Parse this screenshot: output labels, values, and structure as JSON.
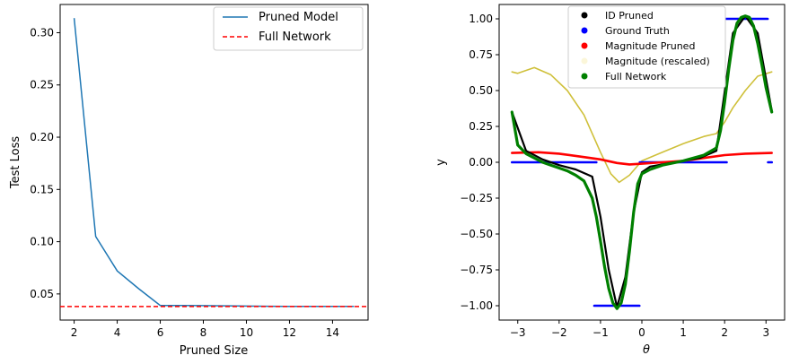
{
  "chart_data": [
    {
      "type": "line",
      "xlabel": "Pruned Size",
      "ylabel": "Test Loss",
      "xlim": [
        1.35,
        15.65
      ],
      "ylim": [
        0.025,
        0.327
      ],
      "xticks": [
        2,
        4,
        6,
        8,
        10,
        12,
        14
      ],
      "xtick_labels": [
        "2",
        "4",
        "6",
        "8",
        "10",
        "12",
        "14"
      ],
      "yticks": [
        0.05,
        0.1,
        0.15,
        0.2,
        0.25,
        0.3
      ],
      "ytick_labels": [
        "0.05",
        "0.10",
        "0.15",
        "0.20",
        "0.25",
        "0.30"
      ],
      "grid": false,
      "legend_position": "top-right",
      "series": [
        {
          "name": "Pruned Model",
          "color": "#1f77b4",
          "style": "solid",
          "x": [
            2,
            3,
            4,
            5,
            6,
            7,
            8,
            9,
            10,
            11,
            12,
            13,
            14,
            15
          ],
          "y": [
            0.314,
            0.105,
            0.072,
            0.055,
            0.039,
            0.039,
            0.0388,
            0.0386,
            0.0384,
            0.0382,
            0.038,
            0.038,
            0.038,
            0.038
          ]
        },
        {
          "name": "Full Network",
          "color": "#ff0000",
          "style": "dashed",
          "hline": 0.038
        }
      ]
    },
    {
      "type": "scatter",
      "xlabel": "θ",
      "ylabel": "y",
      "xlim": [
        -3.45,
        3.45
      ],
      "ylim": [
        -1.1,
        1.1
      ],
      "xticks": [
        -3,
        -2,
        -1,
        0,
        1,
        2,
        3
      ],
      "xtick_labels": [
        "−3",
        "−2",
        "−1",
        "0",
        "1",
        "2",
        "3"
      ],
      "yticks": [
        -1.0,
        -0.75,
        -0.5,
        -0.25,
        0.0,
        0.25,
        0.5,
        0.75,
        1.0
      ],
      "ytick_labels": [
        "−1.00",
        "−0.75",
        "−0.50",
        "−0.25",
        "0.00",
        "0.25",
        "0.50",
        "0.75",
        "1.00"
      ],
      "grid": false,
      "legend_position": "top-center",
      "series": [
        {
          "name": "ID Pruned",
          "color": "#000000",
          "x": [
            -3.14,
            -2.8,
            -2.4,
            -2.0,
            -1.6,
            -1.2,
            -1.0,
            -0.8,
            -0.6,
            -0.4,
            -0.2,
            0.0,
            0.2,
            0.6,
            1.0,
            1.4,
            1.8,
            2.2,
            2.5,
            2.8,
            3.14
          ],
          "y": [
            0.35,
            0.08,
            0.02,
            -0.02,
            -0.05,
            -0.1,
            -0.38,
            -0.75,
            -1.01,
            -0.8,
            -0.35,
            -0.07,
            -0.03,
            -0.01,
            0.01,
            0.03,
            0.08,
            0.9,
            1.02,
            0.9,
            0.36
          ]
        },
        {
          "name": "Ground Truth",
          "color": "#0000ff",
          "segments": [
            {
              "x": [
                -3.14,
                -1.1
              ],
              "y": 0.0
            },
            {
              "x": [
                -1.15,
                -0.06
              ],
              "y": -1.0
            },
            {
              "x": [
                -0.05,
                2.05
              ],
              "y": 0.0
            },
            {
              "x": [
                2.0,
                3.04
              ],
              "y": 1.0
            },
            {
              "x": [
                3.05,
                3.14
              ],
              "y": 0.0
            }
          ]
        },
        {
          "name": "Magnitude Pruned",
          "color": "#ff0000",
          "x": [
            -3.14,
            -2.5,
            -2.0,
            -1.5,
            -1.0,
            -0.6,
            -0.3,
            0.0,
            0.5,
            1.0,
            1.5,
            2.0,
            2.5,
            3.14
          ],
          "y": [
            0.065,
            0.07,
            0.06,
            0.04,
            0.02,
            -0.005,
            -0.015,
            -0.01,
            0.0,
            0.01,
            0.03,
            0.05,
            0.06,
            0.065
          ]
        },
        {
          "name": "Magnitude (rescaled)",
          "color": "#cfc03a",
          "x": [
            -3.14,
            -3.0,
            -2.6,
            -2.2,
            -1.8,
            -1.4,
            -1.0,
            -0.75,
            -0.55,
            -0.3,
            0.0,
            0.5,
            1.0,
            1.5,
            1.8,
            2.0,
            2.2,
            2.5,
            2.8,
            3.14
          ],
          "y": [
            0.63,
            0.62,
            0.66,
            0.61,
            0.5,
            0.33,
            0.07,
            -0.08,
            -0.14,
            -0.09,
            0.01,
            0.07,
            0.13,
            0.18,
            0.2,
            0.28,
            0.38,
            0.5,
            0.6,
            0.63
          ]
        },
        {
          "name": "Full Network",
          "color": "#008000",
          "x": [
            -3.14,
            -3.0,
            -2.8,
            -2.6,
            -2.4,
            -2.2,
            -2.0,
            -1.8,
            -1.6,
            -1.4,
            -1.2,
            -1.1,
            -1.0,
            -0.9,
            -0.8,
            -0.7,
            -0.6,
            -0.5,
            -0.4,
            -0.3,
            -0.2,
            -0.1,
            0.0,
            0.2,
            0.5,
            1.0,
            1.5,
            1.8,
            1.9,
            2.0,
            2.1,
            2.2,
            2.3,
            2.4,
            2.5,
            2.6,
            2.7,
            2.8,
            2.9,
            3.0,
            3.14
          ],
          "y": [
            0.35,
            0.12,
            0.06,
            0.03,
            0.0,
            -0.02,
            -0.04,
            -0.06,
            -0.09,
            -0.13,
            -0.25,
            -0.38,
            -0.55,
            -0.73,
            -0.88,
            -0.98,
            -1.02,
            -0.98,
            -0.85,
            -0.62,
            -0.35,
            -0.15,
            -0.08,
            -0.05,
            -0.02,
            0.01,
            0.05,
            0.1,
            0.22,
            0.42,
            0.65,
            0.85,
            0.97,
            1.01,
            1.02,
            1.01,
            0.95,
            0.83,
            0.68,
            0.52,
            0.35
          ]
        }
      ]
    }
  ]
}
